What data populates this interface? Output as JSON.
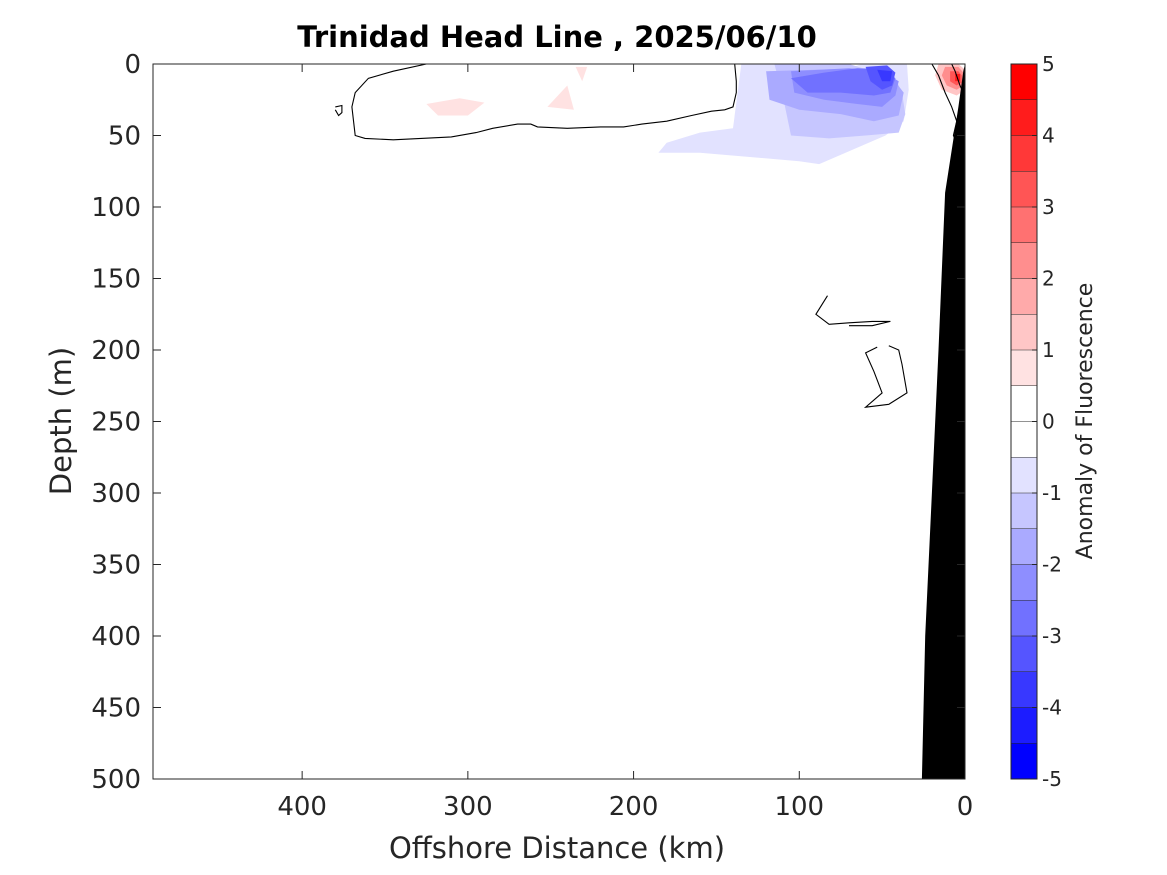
{
  "chart_data": {
    "type": "contour",
    "title": "Trinidad Head Line , 2025/06/10",
    "xlabel": "Offshore Distance (km)",
    "ylabel": "Depth (m)",
    "colorbar_label": "Anomaly of Fluorescence",
    "xlim": [
      490,
      0
    ],
    "ylim": [
      0,
      500
    ],
    "x_reversed": true,
    "y_reversed": true,
    "x_ticks": [
      400,
      300,
      200,
      100,
      0
    ],
    "y_ticks": [
      0,
      50,
      100,
      150,
      200,
      250,
      300,
      350,
      400,
      450,
      500
    ],
    "colorbar": {
      "min": -5,
      "max": 5,
      "ticks": [
        5,
        4,
        3,
        2,
        1,
        0,
        -1,
        -2,
        -3,
        -4,
        -5
      ],
      "levels": [
        {
          "from": 4.5,
          "to": 5,
          "color": "#ff0000"
        },
        {
          "from": 4,
          "to": 4.5,
          "color": "#ff1c1c"
        },
        {
          "from": 3.5,
          "to": 4,
          "color": "#ff3838"
        },
        {
          "from": 3,
          "to": 3.5,
          "color": "#ff5555"
        },
        {
          "from": 2.5,
          "to": 3,
          "color": "#ff7171"
        },
        {
          "from": 2,
          "to": 2.5,
          "color": "#ff8e8e"
        },
        {
          "from": 1.5,
          "to": 2,
          "color": "#ffaaaa"
        },
        {
          "from": 1,
          "to": 1.5,
          "color": "#ffc6c6"
        },
        {
          "from": 0.5,
          "to": 1,
          "color": "#ffe2e2"
        },
        {
          "from": 0,
          "to": 0.5,
          "color": "#ffffff"
        },
        {
          "from": -0.5,
          "to": 0,
          "color": "#ffffff"
        },
        {
          "from": -1,
          "to": -0.5,
          "color": "#e2e2ff"
        },
        {
          "from": -1.5,
          "to": -1,
          "color": "#c6c6ff"
        },
        {
          "from": -2,
          "to": -1.5,
          "color": "#aaaaff"
        },
        {
          "from": -2.5,
          "to": -2,
          "color": "#8e8eff"
        },
        {
          "from": -3,
          "to": -2.5,
          "color": "#7171ff"
        },
        {
          "from": -3.5,
          "to": -3,
          "color": "#5555ff"
        },
        {
          "from": -4,
          "to": -3.5,
          "color": "#3838ff"
        },
        {
          "from": -4.5,
          "to": -4,
          "color": "#1c1cff"
        },
        {
          "from": -5,
          "to": -4.5,
          "color": "#0000ff"
        }
      ]
    },
    "filled_regions": [
      {
        "name": "negative-anomaly-outer",
        "level": -0.75,
        "color": "#e2e2ff",
        "points": [
          [
            135,
            0
          ],
          [
            112,
            0
          ],
          [
            108,
            10
          ],
          [
            98,
            18
          ],
          [
            84,
            8
          ],
          [
            62,
            0
          ],
          [
            35,
            0
          ],
          [
            34,
            18
          ],
          [
            37,
            40
          ],
          [
            48,
            50
          ],
          [
            88,
            70
          ],
          [
            100,
            68
          ],
          [
            160,
            62
          ],
          [
            185,
            62
          ],
          [
            180,
            55
          ],
          [
            160,
            48
          ],
          [
            140,
            45
          ]
        ]
      },
      {
        "name": "negative-anomaly-2",
        "level": -1.25,
        "color": "#c6c6ff",
        "points": [
          [
            115,
            0
          ],
          [
            110,
            22
          ],
          [
            105,
            50
          ],
          [
            82,
            52
          ],
          [
            60,
            50
          ],
          [
            40,
            48
          ],
          [
            36,
            35
          ],
          [
            38,
            20
          ],
          [
            42,
            10
          ],
          [
            70,
            0
          ]
        ]
      },
      {
        "name": "negative-anomaly-3",
        "level": -1.75,
        "color": "#aaaaff",
        "points": [
          [
            120,
            5
          ],
          [
            118,
            25
          ],
          [
            100,
            32
          ],
          [
            75,
            35
          ],
          [
            55,
            40
          ],
          [
            40,
            36
          ],
          [
            37,
            20
          ],
          [
            45,
            8
          ],
          [
            60,
            3
          ]
        ]
      },
      {
        "name": "negative-anomaly-4",
        "level": -2.25,
        "color": "#8e8eff",
        "points": [
          [
            105,
            5
          ],
          [
            103,
            20
          ],
          [
            85,
            25
          ],
          [
            65,
            28
          ],
          [
            50,
            30
          ],
          [
            42,
            22
          ],
          [
            40,
            12
          ],
          [
            50,
            5
          ],
          [
            70,
            3
          ]
        ]
      },
      {
        "name": "negative-anomaly-5",
        "level": -2.75,
        "color": "#7171ff",
        "points": [
          [
            105,
            10
          ],
          [
            95,
            20
          ],
          [
            75,
            20
          ],
          [
            55,
            22
          ],
          [
            45,
            20
          ],
          [
            42,
            10
          ],
          [
            48,
            4
          ],
          [
            65,
            3
          ],
          [
            85,
            6
          ]
        ]
      },
      {
        "name": "negative-anomaly-6",
        "level": -3.25,
        "color": "#5555ff",
        "points": [
          [
            60,
            2
          ],
          [
            57,
            12
          ],
          [
            50,
            18
          ],
          [
            44,
            15
          ],
          [
            42,
            6
          ],
          [
            47,
            1
          ]
        ]
      },
      {
        "name": "negative-anomaly-7",
        "level": -3.75,
        "color": "#3838ff",
        "points": [
          [
            53,
            4
          ],
          [
            50,
            12
          ],
          [
            45,
            12
          ],
          [
            44,
            5
          ]
        ]
      },
      {
        "name": "positive-anomaly-offshore-1",
        "level": 0.75,
        "color": "#ffe2e2",
        "points": [
          [
            325,
            28
          ],
          [
            305,
            24
          ],
          [
            290,
            27
          ],
          [
            300,
            36
          ],
          [
            318,
            36
          ]
        ]
      },
      {
        "name": "positive-anomaly-offshore-2",
        "level": 0.75,
        "color": "#ffe2e2",
        "points": [
          [
            235,
            2
          ],
          [
            228,
            2
          ],
          [
            231,
            12
          ]
        ]
      },
      {
        "name": "positive-anomaly-offshore-3",
        "level": 0.75,
        "color": "#ffe2e2",
        "points": [
          [
            252,
            30
          ],
          [
            240,
            15
          ],
          [
            236,
            32
          ]
        ]
      },
      {
        "name": "positive-anomaly-nearshore-1",
        "level": 1.25,
        "color": "#ffc6c6",
        "points": [
          [
            16,
            0
          ],
          [
            4,
            0
          ],
          [
            0,
            4
          ],
          [
            0,
            18
          ],
          [
            5,
            22
          ],
          [
            14,
            18
          ],
          [
            18,
            8
          ]
        ]
      },
      {
        "name": "positive-anomaly-nearshore-2",
        "level": 2.25,
        "color": "#ff8e8e",
        "points": [
          [
            12,
            2
          ],
          [
            4,
            2
          ],
          [
            1,
            6
          ],
          [
            1,
            15
          ],
          [
            5,
            18
          ],
          [
            11,
            15
          ],
          [
            14,
            8
          ]
        ]
      },
      {
        "name": "positive-anomaly-nearshore-3",
        "level": 3.25,
        "color": "#ff5555",
        "points": [
          [
            9,
            5
          ],
          [
            4,
            5
          ],
          [
            2,
            8
          ],
          [
            2,
            13
          ],
          [
            5,
            15
          ],
          [
            9,
            12
          ]
        ]
      },
      {
        "name": "positive-anomaly-nearshore-4",
        "level": 4.25,
        "color": "#ff1c1c",
        "points": [
          [
            6,
            7
          ],
          [
            3,
            7
          ],
          [
            3,
            12
          ],
          [
            6,
            12
          ]
        ]
      }
    ],
    "zero_contours": [
      {
        "name": "contour-offshore-main",
        "points": [
          [
            325,
            0
          ],
          [
            345,
            5
          ],
          [
            360,
            10
          ],
          [
            368,
            20
          ],
          [
            370,
            30
          ],
          [
            368,
            50
          ],
          [
            362,
            52
          ],
          [
            345,
            53
          ],
          [
            310,
            51
          ],
          [
            295,
            48
          ],
          [
            285,
            45
          ],
          [
            270,
            42
          ],
          [
            262,
            42
          ],
          [
            258,
            44
          ],
          [
            240,
            45
          ],
          [
            220,
            44
          ],
          [
            206,
            44
          ],
          [
            195,
            42
          ],
          [
            180,
            40
          ],
          [
            165,
            36
          ],
          [
            153,
            33
          ],
          [
            145,
            32
          ],
          [
            140,
            30
          ],
          [
            138,
            20
          ],
          [
            138,
            12
          ],
          [
            139,
            0
          ]
        ]
      },
      {
        "name": "contour-small-ring",
        "points": [
          [
            380,
            30
          ],
          [
            376,
            29
          ],
          [
            376,
            34
          ],
          [
            378,
            36
          ],
          [
            380,
            32
          ]
        ]
      },
      {
        "name": "contour-nearshore",
        "points": [
          [
            20,
            0
          ],
          [
            16,
            8
          ],
          [
            12,
            20
          ],
          [
            8,
            30
          ],
          [
            5,
            40
          ],
          [
            7,
            50
          ],
          [
            4,
            58
          ],
          [
            2,
            60
          ]
        ]
      },
      {
        "name": "contour-nearshore-inner",
        "points": [
          [
            8,
            0
          ],
          [
            6,
            5
          ],
          [
            3,
            15
          ],
          [
            1,
            20
          ]
        ]
      },
      {
        "name": "contour-mid-depth-1",
        "points": [
          [
            83,
            162
          ],
          [
            90,
            175
          ],
          [
            82,
            182
          ],
          [
            70,
            181
          ],
          [
            56,
            180
          ],
          [
            45,
            180
          ],
          [
            56,
            183
          ],
          [
            70,
            183
          ]
        ]
      },
      {
        "name": "contour-mid-depth-2",
        "points": [
          [
            53,
            198
          ],
          [
            60,
            202
          ],
          [
            55,
            215
          ],
          [
            50,
            230
          ],
          [
            60,
            240
          ],
          [
            46,
            238
          ],
          [
            35,
            230
          ],
          [
            38,
            210
          ],
          [
            40,
            200
          ],
          [
            46,
            197
          ]
        ]
      }
    ],
    "bathymetry": {
      "color": "#000000",
      "points": [
        [
          0,
          0
        ],
        [
          0,
          500
        ],
        [
          26,
          500
        ],
        [
          24,
          400
        ],
        [
          20,
          300
        ],
        [
          16,
          200
        ],
        [
          12,
          90
        ],
        [
          4,
          30
        ],
        [
          1,
          5
        ]
      ]
    }
  }
}
